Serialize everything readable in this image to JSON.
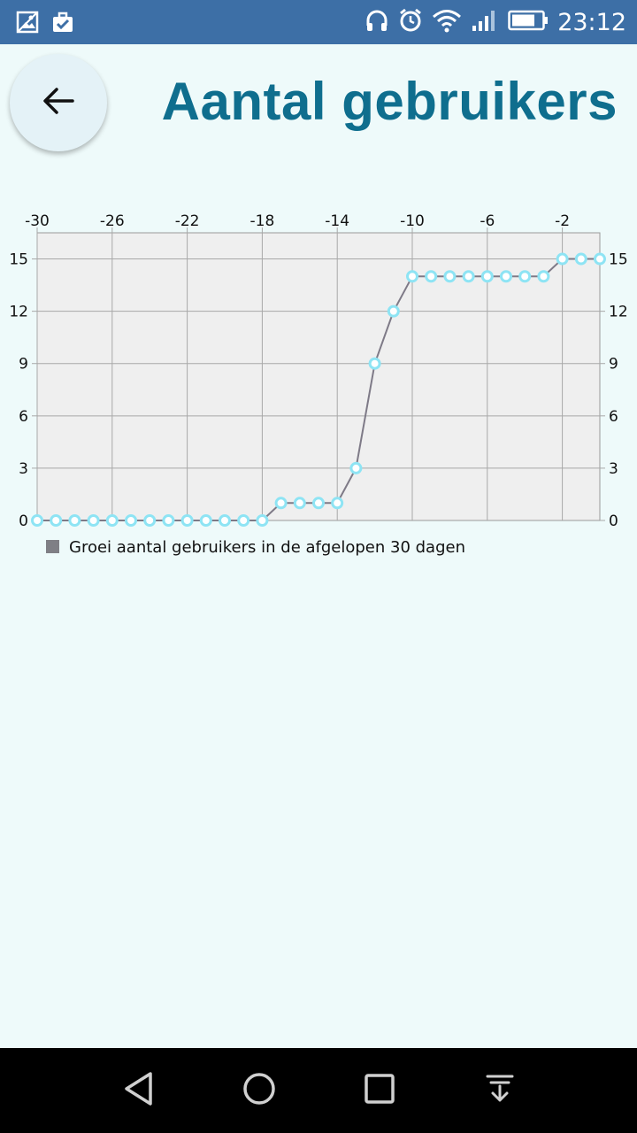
{
  "status_bar": {
    "time": "23:12",
    "left_icons": [
      "gallery-icon",
      "briefcase-check-icon"
    ],
    "right_icons": [
      "headphones-icon",
      "alarm-icon",
      "wifi-icon",
      "signal-icon",
      "battery-icon"
    ]
  },
  "header": {
    "title": "Aantal gebruikers",
    "back_icon": "arrow-left-icon"
  },
  "colors": {
    "title": "#0f6e8e",
    "status_bar": "#3d6fa6",
    "background": "#eefafa",
    "plot_background": "#efefef",
    "line": "#7e7a87",
    "marker": "#8ee4f4",
    "legend_swatch": "#7f7f85"
  },
  "chart_data": {
    "type": "line",
    "x": [
      -30,
      -29,
      -28,
      -27,
      -26,
      -25,
      -24,
      -23,
      -22,
      -21,
      -20,
      -19,
      -18,
      -17,
      -16,
      -15,
      -14,
      -13,
      -12,
      -11,
      -10,
      -9,
      -8,
      -7,
      -6,
      -5,
      -4,
      -3,
      -2,
      -1,
      0
    ],
    "series": [
      {
        "name": "Groei aantal gebruikers in de afgelopen 30 dagen",
        "values": [
          0,
          0,
          0,
          0,
          0,
          0,
          0,
          0,
          0,
          0,
          0,
          0,
          0,
          1,
          1,
          1,
          1,
          3,
          9,
          12,
          14,
          14,
          14,
          14,
          14,
          14,
          14,
          14,
          15,
          15,
          15
        ]
      }
    ],
    "x_ticks": [
      "-30",
      "-26",
      "-22",
      "-18",
      "-14",
      "-10",
      "-6",
      "-2"
    ],
    "x_tick_values": [
      -30,
      -26,
      -22,
      -18,
      -14,
      -10,
      -6,
      -2
    ],
    "y_ticks": [
      "0",
      "3",
      "6",
      "9",
      "12",
      "15"
    ],
    "y_tick_values": [
      0,
      3,
      6,
      9,
      12,
      15
    ],
    "xlim": [
      -30,
      0
    ],
    "ylim": [
      0,
      16.5
    ],
    "x_axis_position": "top",
    "y_axis_position": "both",
    "grid": true,
    "legend_position": "bottom-left",
    "title": "",
    "xlabel": "",
    "ylabel": ""
  },
  "nav": {
    "back_icon": "nav-back-icon",
    "home_icon": "nav-home-icon",
    "recents_icon": "nav-recents-icon",
    "notifications_icon": "nav-notification-shade-icon"
  }
}
